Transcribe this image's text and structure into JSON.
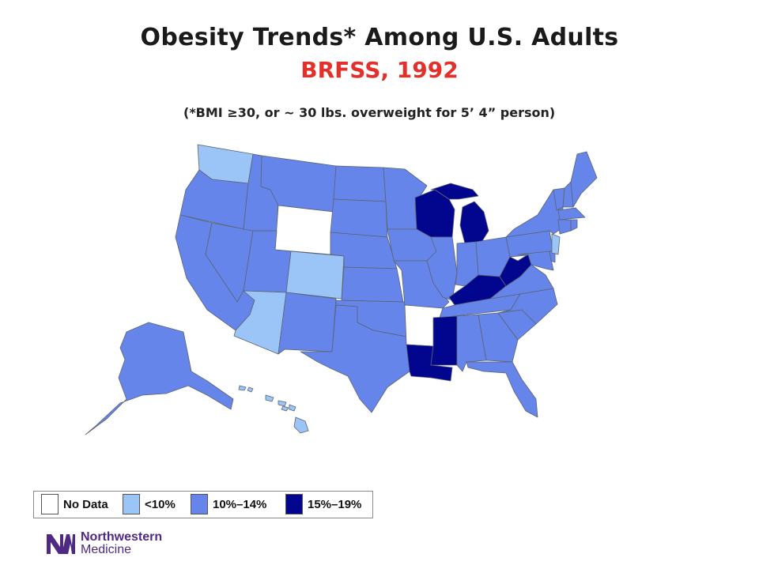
{
  "title": "Obesity Trends* Among U.S. Adults",
  "subtitle": "BRFSS, 1992",
  "note": "(*BMI ≥30, or ~ 30 lbs. overweight for 5’ 4” person)",
  "colors": {
    "no_data": "#ffffff",
    "lt10": "#9cc5f7",
    "10_14": "#6585ea",
    "15_19": "#02068f",
    "title_red": "#e2302b",
    "brand_purple": "#4e2a84"
  },
  "legend": [
    {
      "label": "No Data",
      "color": "#ffffff"
    },
    {
      "label": "<10%",
      "color": "#9cc5f7"
    },
    {
      "label": "10%–14%",
      "color": "#6585ea"
    },
    {
      "label": "15%–19%",
      "color": "#02068f"
    }
  ],
  "state_categories": {
    "no_data": [
      "WY",
      "AR"
    ],
    "lt10": [
      "WA",
      "CO",
      "AZ",
      "NJ",
      "HI"
    ],
    "15_19": [
      "WI",
      "MI",
      "KY",
      "WV",
      "MS",
      "LA"
    ],
    "10_14": [
      "OR",
      "CA",
      "NV",
      "ID",
      "MT",
      "UT",
      "NM",
      "ND",
      "SD",
      "NE",
      "KS",
      "OK",
      "TX",
      "MN",
      "IA",
      "MO",
      "IL",
      "IN",
      "OH",
      "TN",
      "AL",
      "GA",
      "FL",
      "SC",
      "NC",
      "VA",
      "MD",
      "DE",
      "PA",
      "NY",
      "VT",
      "NH",
      "ME",
      "MA",
      "CT",
      "RI",
      "AK"
    ]
  },
  "logo": {
    "line1": "Northwestern",
    "line2": "Medicine",
    "mark": "NM"
  }
}
